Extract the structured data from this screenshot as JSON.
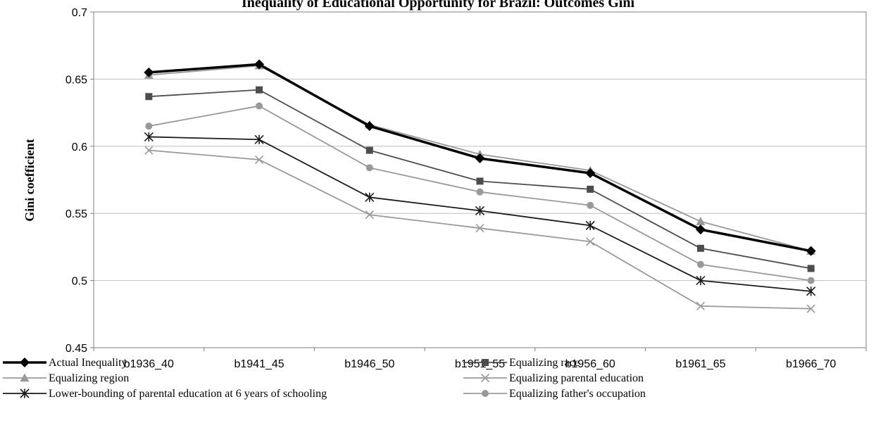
{
  "chart_data": {
    "type": "line",
    "title": "Inequality of Educational Opportunity for Brazil: Outcomes Gini",
    "ylabel": "Gini coefficient",
    "xlabel": "",
    "ylim": [
      0.45,
      0.7
    ],
    "yticks": [
      "0.45",
      "0.5",
      "0.55",
      "0.6",
      "0.65",
      "0.7"
    ],
    "grid": true,
    "legend_position": "bottom",
    "categories": [
      "b1936_40",
      "b1941_45",
      "b1946_50",
      "b1951_55",
      "b1956_60",
      "b1961_65",
      "b1966_70"
    ],
    "series": [
      {
        "name": "Actual Inequality",
        "marker": "diamond",
        "color": "#000000",
        "values": [
          0.655,
          0.661,
          0.615,
          0.591,
          0.58,
          0.538,
          0.522
        ]
      },
      {
        "name": "Equalizing race",
        "marker": "square",
        "color": "#4d4d4d",
        "values": [
          0.637,
          0.642,
          0.597,
          0.574,
          0.568,
          0.524,
          0.509
        ]
      },
      {
        "name": "Equalizing region",
        "marker": "triangle",
        "color": "#999999",
        "values": [
          0.653,
          0.66,
          0.616,
          0.594,
          0.582,
          0.544,
          0.522
        ]
      },
      {
        "name": "Equalizing parental education",
        "marker": "x",
        "color": "#999999",
        "values": [
          0.597,
          0.59,
          0.549,
          0.539,
          0.529,
          0.481,
          0.479
        ]
      },
      {
        "name": "Lower-bounding of parental education at 6 years of schooling",
        "marker": "star",
        "color": "#1a1a1a",
        "values": [
          0.607,
          0.605,
          0.562,
          0.552,
          0.541,
          0.5,
          0.492
        ]
      },
      {
        "name": "Equalizing father's occupation",
        "marker": "circle",
        "color": "#999999",
        "values": [
          0.615,
          0.63,
          0.584,
          0.566,
          0.556,
          0.512,
          0.5
        ]
      }
    ]
  }
}
